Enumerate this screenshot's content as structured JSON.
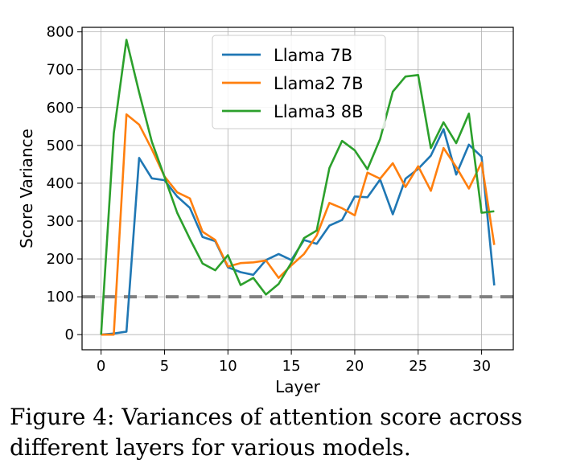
{
  "caption": {
    "label": "Figure 4:",
    "text": "Variances of attention score across different layers for various models."
  },
  "chart_data": {
    "type": "line",
    "xlabel": "Layer",
    "ylabel": "Score Variance",
    "xlim": [
      -1.5,
      32.5
    ],
    "ylim": [
      -40,
      812
    ],
    "xticks": [
      0,
      5,
      10,
      15,
      20,
      25,
      30
    ],
    "yticks": [
      0,
      100,
      200,
      300,
      400,
      500,
      600,
      700,
      800
    ],
    "grid": true,
    "legend_position": "top-center",
    "reference_line": {
      "y": 100,
      "style": "dashed",
      "color": "#808080"
    },
    "x": [
      0,
      1,
      2,
      3,
      4,
      5,
      6,
      7,
      8,
      9,
      10,
      11,
      12,
      13,
      14,
      15,
      16,
      17,
      18,
      19,
      20,
      21,
      22,
      23,
      24,
      25,
      26,
      27,
      28,
      29,
      30,
      31
    ],
    "series": [
      {
        "name": "Llama 7B",
        "color": "#1f77b4",
        "values": [
          0,
          3,
          8,
          467,
          413,
          408,
          365,
          335,
          258,
          247,
          178,
          165,
          158,
          197,
          213,
          197,
          250,
          240,
          288,
          303,
          365,
          363,
          410,
          318,
          412,
          438,
          473,
          543,
          423,
          502,
          470,
          130
        ]
      },
      {
        "name": "Llama2 7B",
        "color": "#ff7f0e",
        "values": [
          0,
          0,
          582,
          555,
          490,
          418,
          376,
          360,
          272,
          250,
          180,
          189,
          191,
          196,
          150,
          183,
          213,
          262,
          348,
          334,
          315,
          428,
          412,
          453,
          390,
          445,
          380,
          493,
          443,
          386,
          455,
          237
        ]
      },
      {
        "name": "Llama3 8B",
        "color": "#2ca02c",
        "values": [
          0,
          532,
          779,
          640,
          510,
          417,
          322,
          253,
          188,
          170,
          210,
          131,
          150,
          106,
          134,
          190,
          255,
          275,
          440,
          512,
          487,
          437,
          517,
          642,
          682,
          686,
          493,
          561,
          506,
          584,
          322,
          326
        ]
      }
    ]
  }
}
